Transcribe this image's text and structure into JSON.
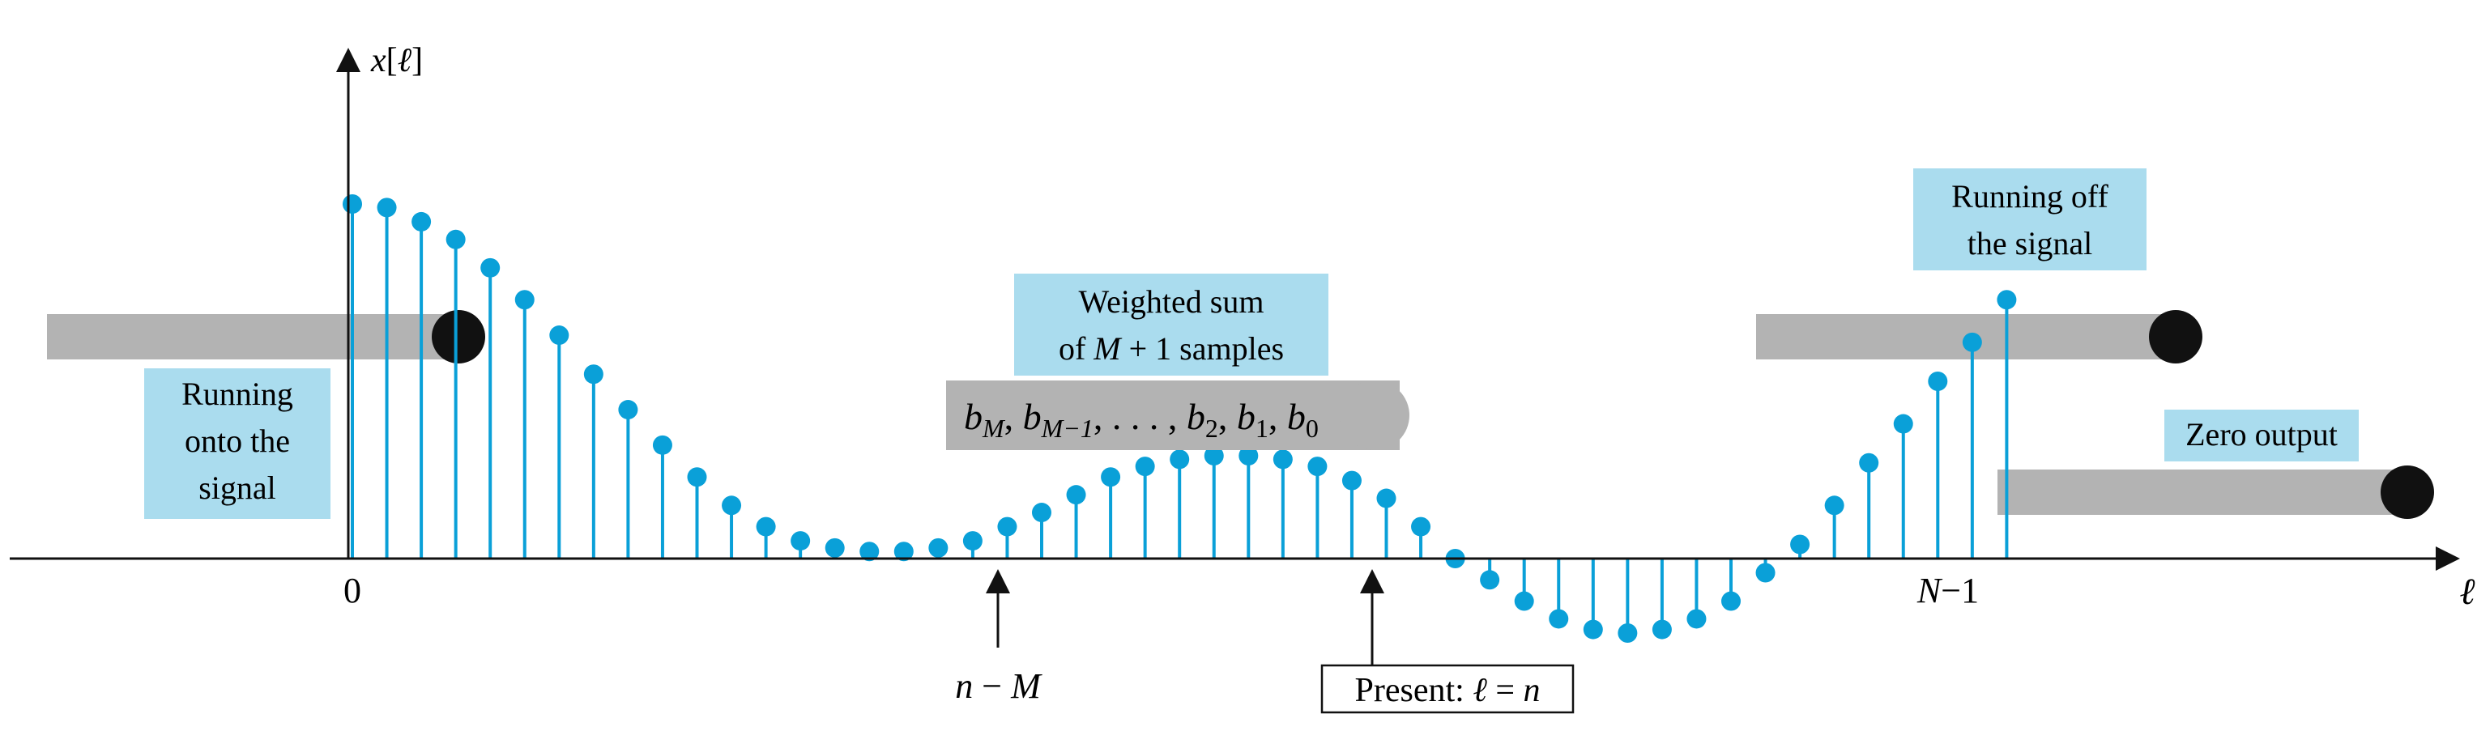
{
  "colors": {
    "stem": "#0aa0d8",
    "label_fill": "#aadcee",
    "bar_fill": "#b3b3b3",
    "dot_fill": "#111111",
    "axis": "#111111"
  },
  "axes": {
    "y_label_var": "x",
    "y_label_open": "[",
    "y_label_idx": "ℓ",
    "y_label_close": "]",
    "x_label": "ℓ",
    "tick_zero": "0",
    "tick_nm1_N": "N",
    "tick_nm1_op": "−",
    "tick_nm1_one": "1"
  },
  "labels": {
    "running_onto": [
      "Running",
      "onto the",
      "signal"
    ],
    "running_off": [
      "Running off",
      "the signal"
    ],
    "weighted_sum_line1": "Weighted sum",
    "weighted_sum_of": "of ",
    "weighted_sum_M": "M",
    "weighted_sum_rest": " + 1 samples",
    "zero_output": "Zero output",
    "n_minus_M_n": "n",
    "n_minus_M_op": " − ",
    "n_minus_M_M": "M",
    "present_text": "Present: ",
    "present_ell": "ℓ",
    "present_eq": " = ",
    "present_n": "n"
  },
  "coefficients": {
    "b": "b",
    "M": "M",
    "M1": "M−1",
    "dots": ", . . . , ",
    "two": "2",
    "one": "1",
    "zero": "0",
    "comma": ", "
  },
  "signal": {
    "start_index": 0,
    "N_minus_1_index": 47,
    "n_minus_M_index": 19,
    "present_index": 30,
    "values": [
      1.0,
      0.99,
      0.95,
      0.9,
      0.82,
      0.73,
      0.63,
      0.52,
      0.42,
      0.32,
      0.23,
      0.15,
      0.09,
      0.05,
      0.03,
      0.02,
      0.02,
      0.03,
      0.05,
      0.09,
      0.13,
      0.18,
      0.23,
      0.26,
      0.28,
      0.29,
      0.29,
      0.28,
      0.26,
      0.22,
      0.17,
      0.09,
      0.0,
      -0.06,
      -0.12,
      -0.17,
      -0.2,
      -0.21,
      -0.2,
      -0.17,
      -0.12,
      -0.04,
      0.04,
      0.15,
      0.27,
      0.38,
      0.5,
      0.61,
      0.73
    ]
  }
}
